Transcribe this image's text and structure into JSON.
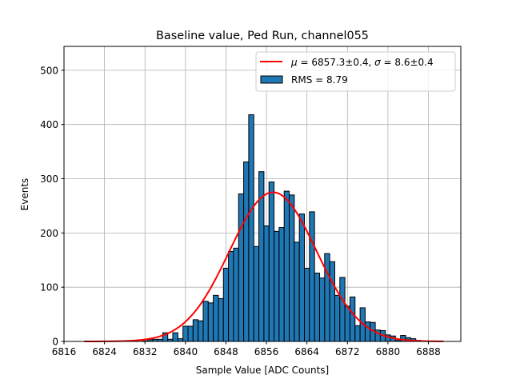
{
  "chart_data": {
    "type": "bar",
    "title": "Baseline value, Ped Run, channel055",
    "xlabel": "Sample Value [ADC Counts]",
    "ylabel": "Events",
    "xlim": [
      6816,
      6894.4
    ],
    "ylim": [
      0,
      544
    ],
    "xticks": [
      6816,
      6824,
      6832,
      6840,
      6848,
      6856,
      6864,
      6872,
      6880,
      6888
    ],
    "yticks": [
      0,
      100,
      200,
      300,
      400,
      500
    ],
    "grid": true,
    "legend_position": "top-right",
    "bin_width": 1,
    "histogram": {
      "name": "RMS = 8.79",
      "color": "#1f77b4",
      "bin_centers": [
        6832,
        6833,
        6834,
        6835,
        6836,
        6837,
        6838,
        6839,
        6840,
        6841,
        6842,
        6843,
        6844,
        6845,
        6846,
        6847,
        6848,
        6849,
        6850,
        6851,
        6852,
        6853,
        6854,
        6855,
        6856,
        6857,
        6858,
        6859,
        6860,
        6861,
        6862,
        6863,
        6864,
        6865,
        6866,
        6867,
        6868,
        6869,
        6870,
        6871,
        6872,
        6873,
        6874,
        6875,
        6876,
        6877,
        6878,
        6879,
        6880,
        6881,
        6882,
        6883,
        6884,
        6885,
        6886
      ],
      "counts": [
        1,
        3,
        4,
        4,
        16,
        4,
        16,
        5,
        28,
        28,
        40,
        38,
        74,
        71,
        85,
        79,
        135,
        166,
        172,
        272,
        331,
        418,
        175,
        313,
        213,
        294,
        203,
        210,
        277,
        270,
        183,
        235,
        135,
        239,
        126,
        117,
        162,
        147,
        85,
        118,
        65,
        82,
        29,
        62,
        36,
        35,
        21,
        20,
        12,
        10,
        2,
        11,
        7,
        5,
        2
      ]
    },
    "fit": {
      "name_parts": [
        "μ",
        " = 6857.3±0.4, ",
        "σ",
        " = 8.6±0.4"
      ],
      "color": "#ff0000",
      "type": "gaussian",
      "mu": 6857.3,
      "sigma": 8.6,
      "amplitude": 275,
      "x_range": [
        6820,
        6891
      ]
    }
  }
}
